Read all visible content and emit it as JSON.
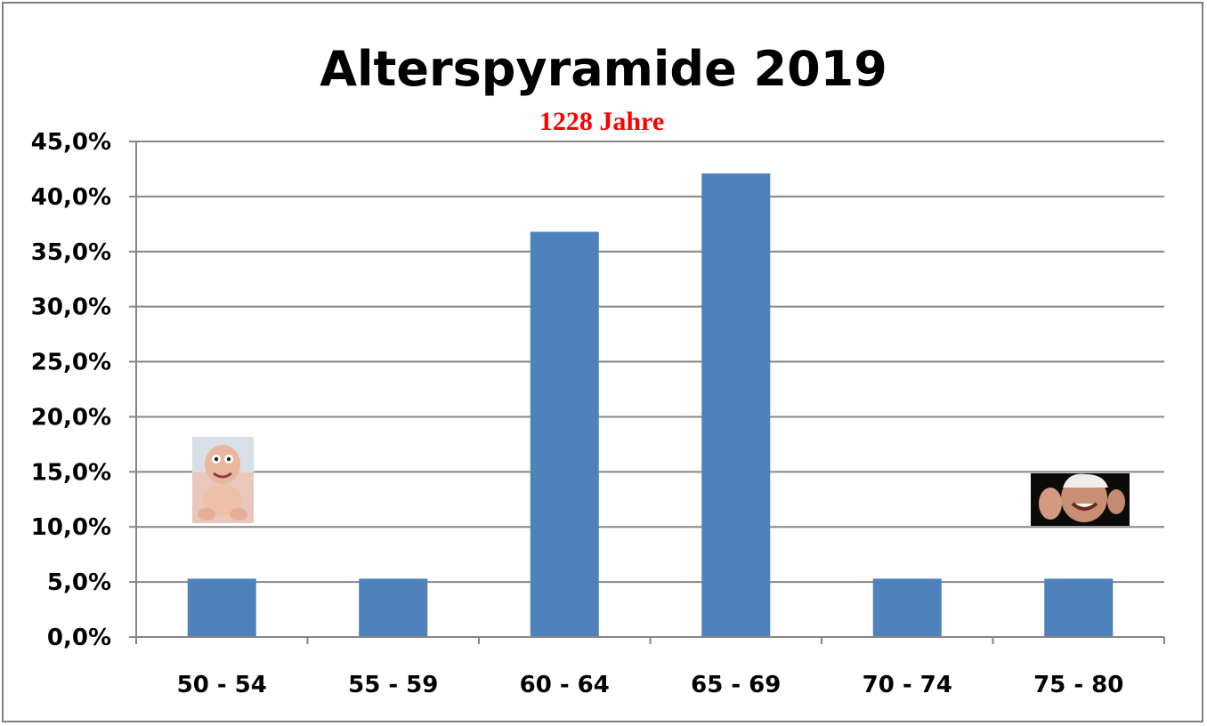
{
  "chart_data": {
    "type": "bar",
    "title": "Alterspyramide 2019",
    "subtitle": "1228 Jahre",
    "categories": [
      "50 - 54",
      "55 - 59",
      "60 - 64",
      "65 - 69",
      "70 - 74",
      "75 - 80"
    ],
    "values": [
      5.3,
      5.3,
      36.8,
      42.1,
      5.3,
      5.3
    ],
    "ylim": [
      0,
      45
    ],
    "yticks": [
      0,
      5,
      10,
      15,
      20,
      25,
      30,
      35,
      40,
      45
    ],
    "ytick_labels": [
      "0,0%",
      "5,0%",
      "10,0%",
      "15,0%",
      "20,0%",
      "25,0%",
      "30,0%",
      "35,0%",
      "40,0%",
      "45,0%"
    ],
    "xlabel": "",
    "ylabel": "",
    "grid": true,
    "legend": "none",
    "colors": {
      "bar": "#4f81bd",
      "gridline": "#868686",
      "subtitle": "#ff0000",
      "frame": "#7f7f7f"
    }
  },
  "images": {
    "baby": "baby-photo",
    "old_man": "laughing-old-man-photo"
  }
}
